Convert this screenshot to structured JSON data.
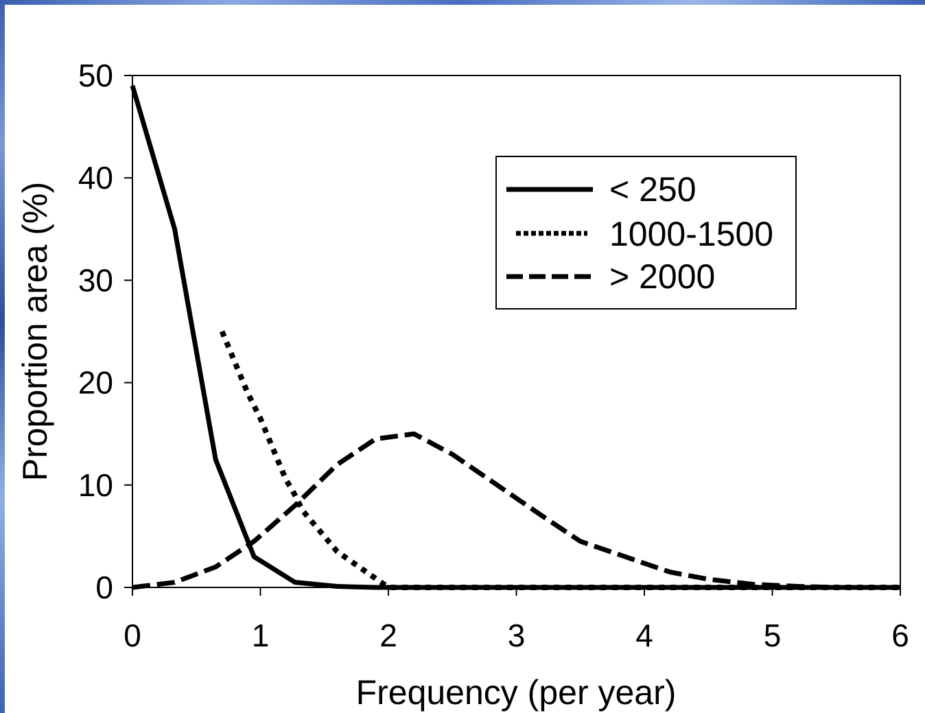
{
  "chart_data": {
    "type": "line",
    "xlabel": "Frequency (per year)",
    "ylabel": "Proportion area (%)",
    "xlim": [
      0,
      6
    ],
    "ylim": [
      0,
      50
    ],
    "xticks": [
      0,
      1,
      2,
      3,
      4,
      5,
      6
    ],
    "yticks": [
      0,
      10,
      20,
      30,
      40,
      50
    ],
    "grid": false,
    "legend_position": "top-right",
    "series": [
      {
        "name": "< 250",
        "style": "solid",
        "x": [
          0,
          0.33,
          0.65,
          0.95,
          1.27,
          1.6,
          1.9,
          2.5,
          3,
          4,
          5,
          6
        ],
        "values": [
          49,
          35,
          12.5,
          3,
          0.5,
          0.1,
          0,
          0,
          0,
          0,
          0,
          0
        ]
      },
      {
        "name": "1000-1500",
        "style": "dotted",
        "x": [
          0.7,
          0.9,
          1.0,
          1.05,
          1.1,
          1.15,
          1.2,
          1.25,
          1.33,
          1.6,
          2,
          3,
          4,
          5,
          6
        ],
        "values": [
          25,
          19,
          16.5,
          15,
          13.5,
          12,
          10.5,
          9.5,
          7.5,
          3.5,
          0,
          0,
          0,
          0,
          0
        ]
      },
      {
        "name": "> 2000",
        "style": "dashed",
        "x": [
          0,
          0.33,
          0.65,
          0.95,
          1.27,
          1.6,
          1.9,
          2.2,
          2.5,
          2.85,
          3.2,
          3.5,
          3.85,
          4.2,
          4.5,
          4.85,
          5.2,
          5.5,
          6
        ],
        "values": [
          0,
          0.5,
          2,
          4.5,
          8,
          12,
          14.5,
          15,
          13,
          10,
          7,
          4.5,
          3,
          1.5,
          0.8,
          0.3,
          0.1,
          0,
          0
        ]
      }
    ]
  }
}
